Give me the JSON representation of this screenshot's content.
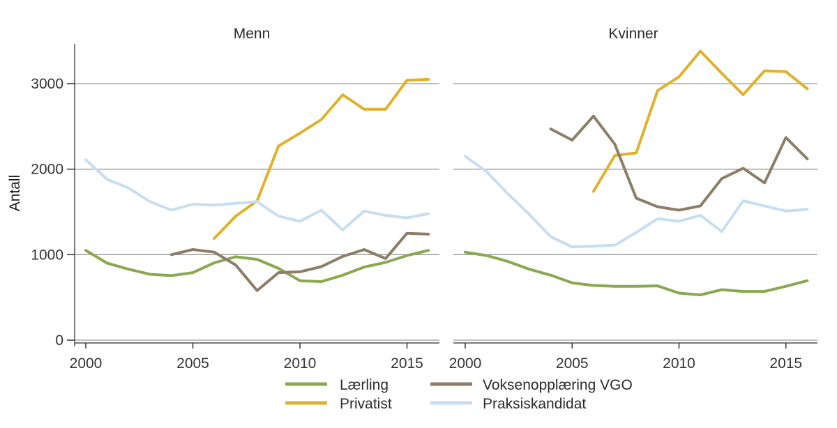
{
  "chart_data": {
    "type": "line",
    "title": "",
    "ylabel": "Antall",
    "xlabel": "",
    "y_ticks": [
      0,
      1000,
      2000,
      3000
    ],
    "x_ticks": [
      2000,
      2005,
      2010,
      2015
    ],
    "x_range": [
      2000,
      2016
    ],
    "ylim": [
      0,
      3450
    ],
    "grid": "horizontal-only",
    "legend_position": "bottom-two-columns",
    "facets": [
      {
        "title": "Menn",
        "series": [
          {
            "name": "Lærling",
            "color": "#8aa84f",
            "start_year": 2000,
            "values": [
              1050,
              900,
              830,
              770,
              755,
              790,
              905,
              975,
              945,
              840,
              695,
              685,
              760,
              855,
              910,
              990,
              1050
            ]
          },
          {
            "name": "Privatist",
            "color": "#dfb22e",
            "start_year": 2006,
            "values": [
              1190,
              1450,
              1630,
              2270,
              2420,
              2580,
              2870,
              2700,
              2700,
              3040,
              3050
            ]
          },
          {
            "name": "Voksenopplæring VGO",
            "color": "#8c7e67",
            "start_year": 2004,
            "values": [
              1000,
              1060,
              1030,
              880,
              580,
              790,
              800,
              860,
              980,
              1060,
              955,
              1250,
              1240
            ]
          },
          {
            "name": "Praksiskandidat",
            "color": "#c7def2",
            "start_year": 2000,
            "values": [
              2110,
              1880,
              1780,
              1620,
              1520,
              1590,
              1580,
              1600,
              1620,
              1450,
              1390,
              1520,
              1290,
              1510,
              1460,
              1430,
              1480
            ]
          }
        ]
      },
      {
        "title": "Kvinner",
        "series": [
          {
            "name": "Lærling",
            "color": "#8aa84f",
            "start_year": 2000,
            "values": [
              1030,
              990,
              920,
              830,
              760,
              670,
              640,
              630,
              630,
              635,
              550,
              530,
              590,
              570,
              570,
              630,
              695
            ]
          },
          {
            "name": "Privatist",
            "color": "#dfb22e",
            "start_year": 2006,
            "values": [
              1740,
              2160,
              2190,
              2920,
              3080,
              3380,
              3120,
              2870,
              3150,
              3140,
              2940
            ]
          },
          {
            "name": "Voksenopplæring VGO",
            "color": "#8c7e67",
            "start_year": 2004,
            "values": [
              2470,
              2340,
              2620,
              2290,
              1660,
              1560,
              1520,
              1570,
              1890,
              2010,
              1840,
              2370,
              2120
            ]
          },
          {
            "name": "Praksiskandidat",
            "color": "#c7def2",
            "start_year": 2000,
            "values": [
              2150,
              1970,
              1710,
              1470,
              1210,
              1090,
              1100,
              1110,
              1260,
              1420,
              1390,
              1460,
              1270,
              1630,
              1570,
              1510,
              1530
            ]
          }
        ]
      }
    ],
    "legend": {
      "entries": [
        {
          "label": "Lærling",
          "color": "#8aa84f"
        },
        {
          "label": "Privatist",
          "color": "#dfb22e"
        },
        {
          "label": "Voksenopplæring VGO",
          "color": "#8c7e67"
        },
        {
          "label": "Praksiskandidat",
          "color": "#c7def2"
        }
      ]
    },
    "style": {
      "gridline_color": "#999999",
      "axis_line_color": "#4d4d4d",
      "tick_color": "#333333",
      "background": "#ffffff",
      "series_stroke_width": 4
    }
  }
}
